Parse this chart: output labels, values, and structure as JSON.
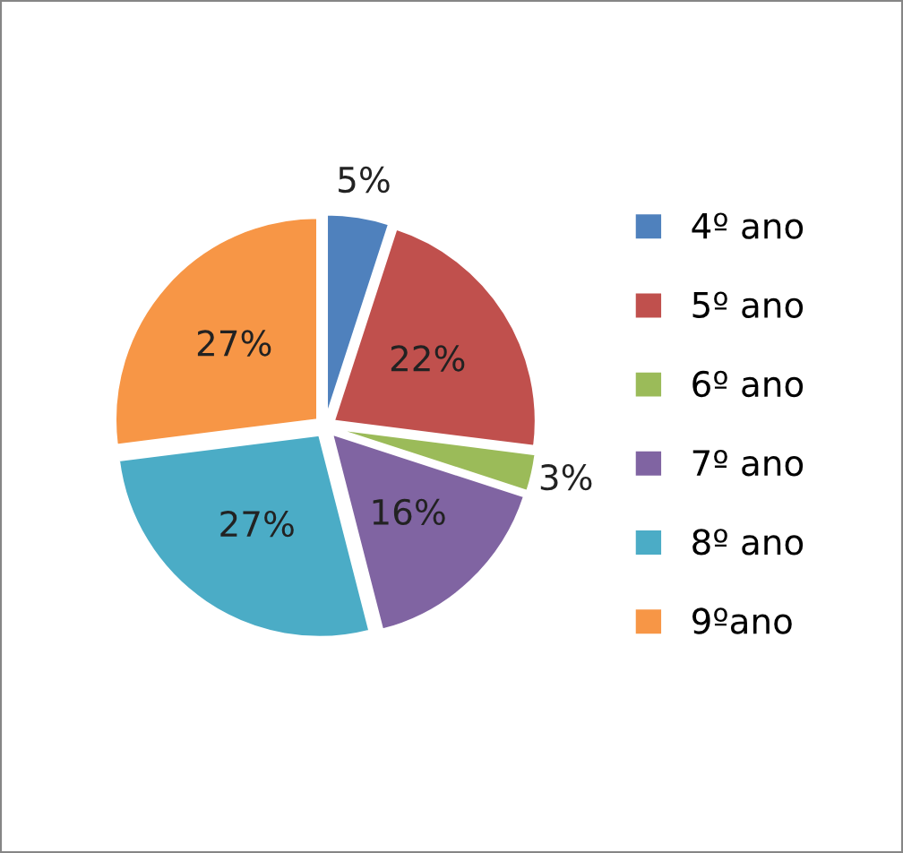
{
  "chart_data": {
    "type": "pie",
    "categories": [
      "4º ano",
      "5º ano",
      "6º ano",
      "7º ano",
      "8º ano",
      "9ºano"
    ],
    "values": [
      5,
      22,
      3,
      16,
      27,
      27
    ],
    "value_labels": [
      "5%",
      "22%",
      "3%",
      "16%",
      "27%",
      "27%"
    ],
    "colors": [
      "#4f81bd",
      "#c0504d",
      "#9bbb59",
      "#8064a2",
      "#4bacc6",
      "#f79646"
    ],
    "legend": "right"
  }
}
